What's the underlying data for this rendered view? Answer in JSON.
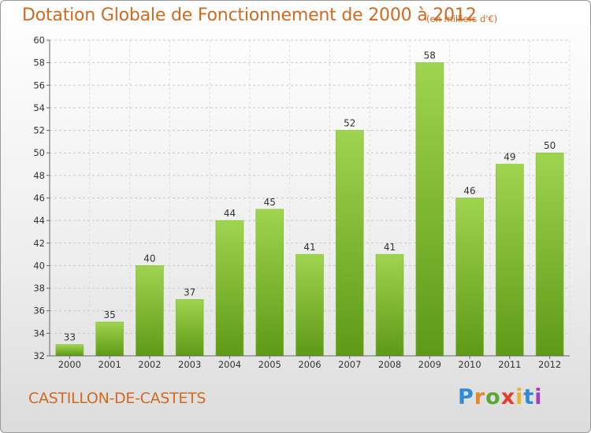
{
  "header": {
    "title": "Dotation Globale de Fonctionnement de 2000 à 2012",
    "subtitle": "(en milliers d'€)"
  },
  "footer": {
    "commune": "CASTILLON-DE-CASTETS",
    "logo": {
      "letters": [
        "P",
        "r",
        "o",
        "x",
        "i",
        "t",
        "i"
      ],
      "colors": [
        "#2e8bd6",
        "#e8862a",
        "#5aa832",
        "#e83b2a",
        "#e8b62a",
        "#2e8bd6",
        "#a33fbf"
      ]
    }
  },
  "chart_data": {
    "type": "bar",
    "title": "Dotation Globale de Fonctionnement de 2000 à 2012",
    "subtitle": "(en milliers d'€)",
    "xlabel": "",
    "ylabel": "",
    "categories": [
      "2000",
      "2001",
      "2002",
      "2003",
      "2004",
      "2005",
      "2006",
      "2007",
      "2008",
      "2009",
      "2010",
      "2011",
      "2012"
    ],
    "values": [
      33,
      35,
      40,
      37,
      44,
      45,
      41,
      52,
      41,
      58,
      46,
      49,
      50
    ],
    "ylim": [
      32,
      60
    ],
    "yticks": [
      32,
      34,
      36,
      38,
      40,
      42,
      44,
      46,
      48,
      50,
      52,
      54,
      56,
      58,
      60
    ],
    "grid": "horizontal dashed",
    "bar_color": "#8cc63f",
    "bar_color_dark": "#5e9a16"
  }
}
